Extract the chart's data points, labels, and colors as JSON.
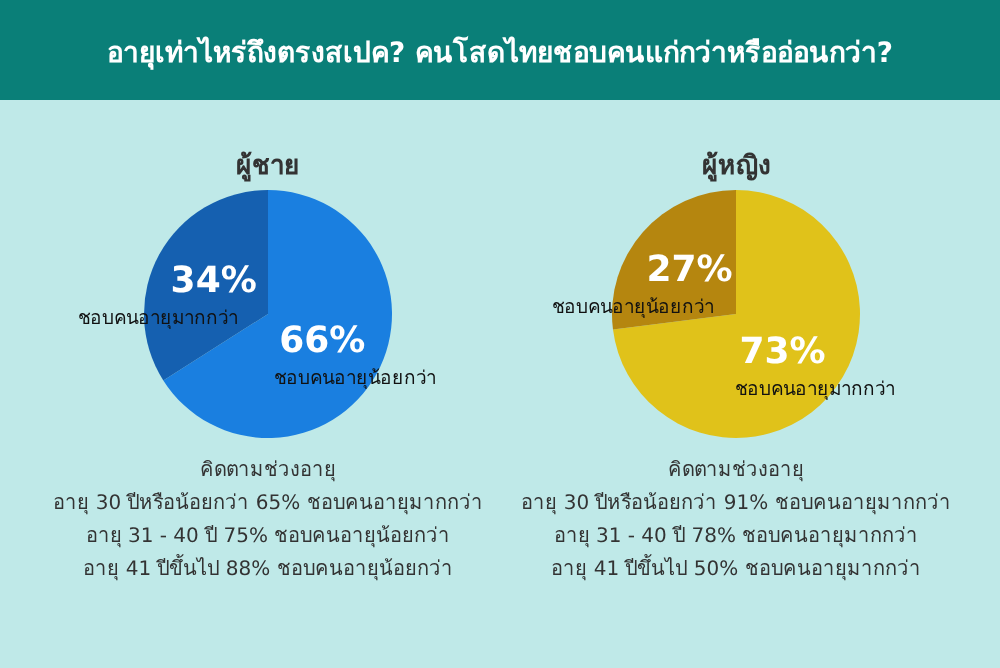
{
  "chart_data": [
    {
      "type": "pie",
      "title": "อายุเท่าไหร่ถึงตรงสเปค? คนโสดไทยชอบคนแก่กว่าหรืออ่อนกว่า?",
      "subtitle": "ผู้ชาย",
      "categories": [
        "ชอบคนอายุน้อยกว่า",
        "ชอบคนอายุมากกว่า"
      ],
      "values": [
        66,
        34
      ],
      "value_labels": [
        "66%",
        "34%"
      ],
      "colors": [
        "#1a7fe0",
        "#1560b0"
      ],
      "annotations": [
        "คิดตามช่วงอายุ",
        "อายุ 30 ปีหรือน้อยกว่า 65% ชอบคนอายุมากกว่า",
        "อายุ 31 - 40 ปี 75% ชอบคนอายุน้อยกว่า",
        "อายุ 41 ปีขึ้นไป 88% ชอบคนอายุน้อยกว่า"
      ]
    },
    {
      "type": "pie",
      "subtitle": "ผู้หญิง",
      "categories": [
        "ชอบคนอายุมากกว่า",
        "ชอบคนอายุน้อยกว่า"
      ],
      "values": [
        73,
        27
      ],
      "value_labels": [
        "73%",
        "27%"
      ],
      "colors": [
        "#e0c21a",
        "#b5860f"
      ],
      "annotations": [
        "คิดตามช่วงอายุ",
        "อายุ 30 ปีหรือน้อยกว่า 91% ชอบคนอายุมากกว่า",
        "อายุ 31 - 40 ปี 78% ชอบคนอายุมากกว่า",
        "อายุ 41 ปีขึ้นไป 50% ชอบคนอายุมากกว่า"
      ]
    }
  ]
}
